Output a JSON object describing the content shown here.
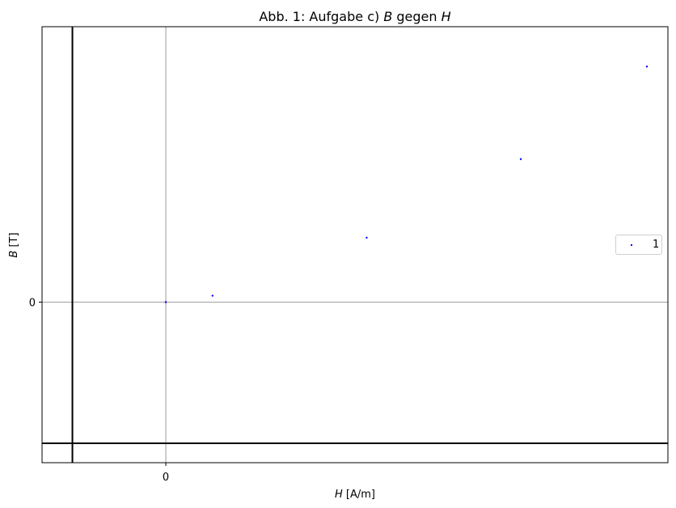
{
  "chart_data": {
    "type": "scatter",
    "title_prefix": "Abb. 1: Aufgabe c) ",
    "title_B": "B",
    "title_mid": " gegen ",
    "title_H": "H",
    "xlabel_sym": "H",
    "xlabel_unit": " [A/m]",
    "ylabel_sym": "B",
    "ylabel_unit": " [T]",
    "x_tick_labels": [
      "0"
    ],
    "y_tick_labels": [
      "0"
    ],
    "xlim": [
      -2650,
      10750
    ],
    "ylim": [
      -0.137,
      0.235
    ],
    "series": [
      {
        "name": "1",
        "color": "#0000ff",
        "points": [
          {
            "x": 0,
            "y": 0
          },
          {
            "x": 1000,
            "y": 0.0055
          },
          {
            "x": 4300,
            "y": 0.055
          },
          {
            "x": 7600,
            "y": 0.122
          },
          {
            "x": 10300,
            "y": 0.201
          }
        ]
      }
    ],
    "reference_lines": {
      "x": 0,
      "y": 0
    },
    "dark_lines": {
      "x": -2000,
      "y": -0.137
    },
    "grid": false,
    "legend_position": "center-right"
  }
}
